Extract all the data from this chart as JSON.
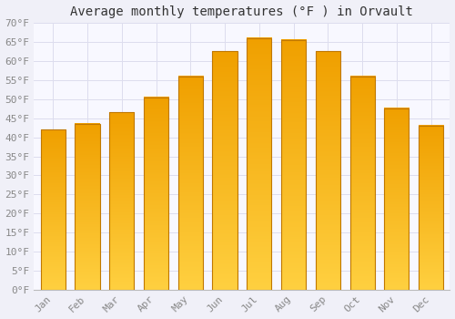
{
  "title": "Average monthly temperatures (°F ) in Orvault",
  "months": [
    "Jan",
    "Feb",
    "Mar",
    "Apr",
    "May",
    "Jun",
    "Jul",
    "Aug",
    "Sep",
    "Oct",
    "Nov",
    "Dec"
  ],
  "values": [
    42,
    43.5,
    46.5,
    50.5,
    56,
    62.5,
    66,
    65.5,
    62.5,
    56,
    47.5,
    43
  ],
  "bar_color_bottom": "#FFD040",
  "bar_color_top": "#F0A000",
  "bar_edge_color": "#C07800",
  "background_color": "#F0F0F8",
  "plot_bg_color": "#F8F8FF",
  "grid_color": "#DDDDEE",
  "ylim": [
    0,
    70
  ],
  "yticks": [
    0,
    5,
    10,
    15,
    20,
    25,
    30,
    35,
    40,
    45,
    50,
    55,
    60,
    65,
    70
  ],
  "ylabel_suffix": "°F",
  "title_fontsize": 10,
  "tick_fontsize": 8,
  "font_family": "monospace"
}
